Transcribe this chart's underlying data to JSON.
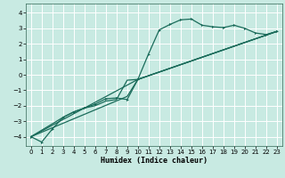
{
  "title": "",
  "xlabel": "Humidex (Indice chaleur)",
  "bg_color": "#c8eae2",
  "grid_color": "#ffffff",
  "line_color": "#1a6b5a",
  "xlim": [
    -0.5,
    23.5
  ],
  "ylim": [
    -4.6,
    4.6
  ],
  "xticks": [
    0,
    1,
    2,
    3,
    4,
    5,
    6,
    7,
    8,
    9,
    10,
    11,
    12,
    13,
    14,
    15,
    16,
    17,
    18,
    19,
    20,
    21,
    22,
    23
  ],
  "yticks": [
    -4,
    -3,
    -2,
    -1,
    0,
    1,
    2,
    3,
    4
  ],
  "series_main": [
    [
      0,
      -4.0
    ],
    [
      1,
      -4.35
    ],
    [
      2,
      -3.5
    ],
    [
      3,
      -2.75
    ],
    [
      4,
      -2.4
    ],
    [
      5,
      -2.15
    ],
    [
      6,
      -1.9
    ],
    [
      7,
      -1.55
    ],
    [
      8,
      -1.5
    ],
    [
      9,
      -1.6
    ],
    [
      10,
      -0.3
    ],
    [
      11,
      1.35
    ],
    [
      12,
      2.9
    ],
    [
      13,
      3.25
    ],
    [
      14,
      3.55
    ],
    [
      15,
      3.6
    ],
    [
      16,
      3.2
    ],
    [
      17,
      3.1
    ],
    [
      18,
      3.05
    ],
    [
      19,
      3.2
    ],
    [
      20,
      3.0
    ],
    [
      21,
      2.7
    ],
    [
      22,
      2.6
    ],
    [
      23,
      2.8
    ]
  ],
  "series2": [
    [
      0,
      -4.0
    ],
    [
      3,
      -2.75
    ],
    [
      4,
      -2.4
    ],
    [
      5,
      -2.15
    ],
    [
      6,
      -2.0
    ],
    [
      7,
      -1.7
    ],
    [
      8,
      -1.6
    ],
    [
      9,
      -0.35
    ],
    [
      10,
      -0.3
    ],
    [
      23,
      2.8
    ]
  ],
  "series3": [
    [
      0,
      -4.0
    ],
    [
      9,
      -1.4
    ],
    [
      10,
      -0.3
    ],
    [
      23,
      2.8
    ]
  ],
  "series4": [
    [
      0,
      -4.0
    ],
    [
      10,
      -0.3
    ],
    [
      23,
      2.8
    ]
  ]
}
